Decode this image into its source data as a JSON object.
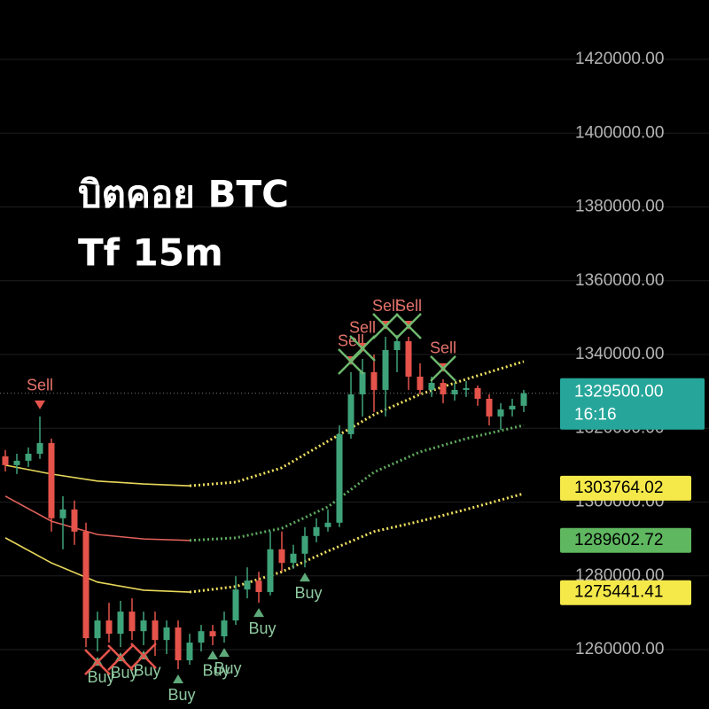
{
  "chart_data": {
    "type": "candlestick",
    "title": "บิตคอย BTC",
    "subtitle": "Tf 15m",
    "categories": [
      null,
      null,
      null,
      null,
      null,
      null,
      null,
      null,
      null,
      null,
      null,
      null,
      null,
      null,
      null,
      null,
      null,
      null,
      null,
      null,
      null,
      null,
      null,
      null,
      null,
      null,
      null,
      null,
      null,
      null,
      null,
      null,
      null,
      null,
      null,
      null,
      null,
      null,
      null,
      null,
      null,
      null,
      null,
      null,
      null,
      null
    ],
    "open": [
      1312400,
      1310000,
      1311200,
      1313100,
      1316000,
      1295600,
      1298000,
      1292000,
      1263100,
      1267900,
      1264300,
      1270300,
      1265000,
      1267900,
      1262600,
      1266000,
      1257100,
      1261900,
      1265000,
      1263600,
      1267900,
      1276300,
      1278700,
      1275600,
      1287200,
      1283500,
      1286000,
      1290800,
      1293200,
      1294400,
      1318400,
      1329200,
      1335200,
      1330400,
      1341200,
      1343600,
      1334000,
      1330400,
      1332300,
      1329200,
      1330400,
      1330900,
      1328000,
      1323200,
      1325100,
      1326100
    ],
    "high": [
      1314100,
      1313100,
      1314800,
      1323200,
      1317200,
      1301600,
      1300400,
      1294400,
      1270300,
      1272700,
      1273200,
      1273900,
      1270300,
      1270300,
      1267900,
      1267900,
      1264300,
      1266700,
      1266700,
      1270300,
      1279900,
      1282300,
      1281100,
      1292000,
      1292000,
      1288400,
      1293200,
      1295600,
      1298000,
      1320800,
      1335200,
      1338800,
      1340000,
      1344800,
      1345300,
      1344800,
      1337600,
      1334000,
      1333300,
      1332300,
      1332800,
      1331600,
      1329200,
      1326800,
      1328000,
      1330400
    ],
    "low": [
      1308300,
      1307600,
      1309500,
      1311700,
      1292000,
      1287200,
      1288400,
      1260700,
      1259500,
      1261900,
      1260700,
      1262600,
      1261200,
      1258300,
      1258800,
      1254700,
      1255900,
      1259500,
      1261200,
      1261900,
      1266700,
      1273900,
      1272700,
      1274700,
      1281100,
      1281900,
      1282300,
      1289100,
      1292000,
      1293200,
      1317200,
      1323200,
      1324400,
      1323200,
      1335200,
      1330400,
      1329200,
      1328500,
      1326800,
      1327500,
      1328500,
      1326100,
      1320800,
      1319600,
      1323200,
      1324400
    ],
    "close": [
      1310000,
      1311200,
      1313100,
      1316000,
      1295600,
      1298000,
      1292000,
      1263100,
      1267900,
      1264300,
      1270300,
      1265000,
      1267900,
      1262600,
      1266000,
      1257100,
      1261900,
      1265000,
      1263600,
      1267900,
      1276300,
      1278700,
      1275600,
      1287200,
      1283500,
      1286000,
      1290800,
      1293200,
      1294400,
      1318400,
      1329200,
      1335200,
      1330400,
      1341200,
      1343600,
      1334000,
      1330400,
      1332300,
      1329200,
      1330400,
      1330900,
      1328000,
      1323200,
      1325100,
      1326100,
      1329500
    ],
    "up_color": "#3fa37a",
    "down_color": "#e5534b",
    "ylim": [
      1243900,
      1436100
    ],
    "yticks": [
      {
        "value": 1260000,
        "label": "1260000.00"
      },
      {
        "value": 1280000,
        "label": "1280000.00"
      },
      {
        "value": 1300000,
        "label": "1300000.00"
      },
      {
        "value": 1320000,
        "label": "1320000.00"
      },
      {
        "value": 1340000,
        "label": "1340000.00"
      },
      {
        "value": 1360000,
        "label": "1360000.00"
      },
      {
        "value": 1380000,
        "label": "1380000.00"
      },
      {
        "value": 1400000,
        "label": "1400000.00"
      },
      {
        "value": 1420000,
        "label": "1420000.00"
      }
    ],
    "grid": true,
    "band_x": [
      0,
      4,
      8,
      12,
      16,
      20,
      24,
      28,
      32,
      36,
      40,
      45
    ],
    "dashed_from": 16,
    "bands": [
      {
        "color": "#e8d85a",
        "dash_color": "#f0e060",
        "values": [
          1310000,
          1307600,
          1305700,
          1304900,
          1304400,
          1305400,
          1309300,
          1316500,
          1323700,
          1329200,
          1333300,
          1338100
        ]
      },
      {
        "color": "#e0605a",
        "dash_color": "#5faa5f",
        "values": [
          1301600,
          1294800,
          1291200,
          1290000,
          1289600,
          1290300,
          1292900,
          1298700,
          1308100,
          1313600,
          1317200,
          1320800
        ]
      },
      {
        "color": "#e8d85a",
        "dash_color": "#f0e060",
        "values": [
          1290300,
          1283500,
          1278300,
          1276100,
          1275600,
          1277100,
          1281100,
          1286700,
          1292000,
          1294800,
          1298000,
          1302300
        ]
      }
    ],
    "band_labels": [
      {
        "value": 1303764.02,
        "color": "#f5e94a"
      },
      {
        "value": 1289602.72,
        "color": "#5fb760"
      },
      {
        "value": 1275441.41,
        "color": "#f5e94a"
      }
    ],
    "current_price": {
      "value": 1329500,
      "label": "1329500.00",
      "time": "16:16",
      "color": "#26a69a"
    },
    "signals": [
      {
        "label": "Sell",
        "candle": 3
      },
      {
        "label": "Buy",
        "candle": 8,
        "crossed": true
      },
      {
        "label": "Buy",
        "candle": 10,
        "crossed": true
      },
      {
        "label": "Buy",
        "candle": 12,
        "crossed": true
      },
      {
        "label": "Buy",
        "candle": 15
      },
      {
        "label": "Buy",
        "candle": 18
      },
      {
        "label": "Buy",
        "candle": 19
      },
      {
        "label": "Buy",
        "candle": 22
      },
      {
        "label": "Buy",
        "candle": 26
      },
      {
        "label": "Sell",
        "candle": 30,
        "crossed": true
      },
      {
        "label": "Sell",
        "candle": 31,
        "crossed": true
      },
      {
        "label": "Sell",
        "candle": 33,
        "crossed": true
      },
      {
        "label": "Sell",
        "candle": 35,
        "crossed": true
      },
      {
        "label": "Sell",
        "candle": 38,
        "crossed": true
      }
    ]
  }
}
